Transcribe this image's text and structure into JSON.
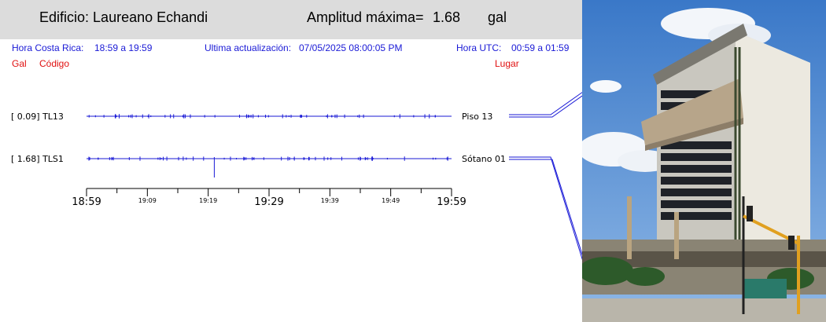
{
  "header": {
    "building_prefix": "Edificio:",
    "building_name": "Laureano Echandi",
    "amplitude_label": "Amplitud máxima=",
    "amplitude_value": "1.68",
    "amplitude_unit": "gal"
  },
  "info": {
    "local_time_label": "Hora Costa Rica:",
    "local_time_value": "18:59 a 19:59",
    "update_label": "Ultima actualización:",
    "update_value": "07/05/2025 08:00:05 PM",
    "utc_label": "Hora UTC:",
    "utc_value": "00:59 a 01:59"
  },
  "columns": {
    "gal": "Gal",
    "code": "Código",
    "place": "Lugar"
  },
  "chart_data": {
    "type": "line",
    "x_ticks_major": [
      "18:59",
      "19:29",
      "19:59"
    ],
    "x_ticks_minor": [
      "19:09",
      "19:19",
      "19:39",
      "19:49"
    ],
    "xlim": [
      "18:59",
      "19:59"
    ],
    "series": [
      {
        "name": "TL13",
        "gal": "[  0.09]",
        "place": "Piso 13",
        "peak_gal": 0.09
      },
      {
        "name": "TLS1",
        "gal": "[  1.68]",
        "place": "Sótano 01",
        "peak_gal": 1.68,
        "peak_time": "19:20"
      }
    ]
  },
  "colors": {
    "trace": "#1a1ad6",
    "info_text": "#1a1ad6",
    "column_headers": "#e01010",
    "header_bg": "#dcdcdc"
  }
}
